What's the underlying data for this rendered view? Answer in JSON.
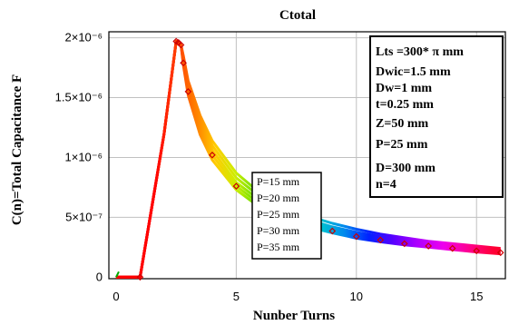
{
  "chart_data": {
    "type": "line",
    "title": "Ctotal",
    "xlabel": "Nunber Turns",
    "ylabel": "C(n)=Total Capacitance F",
    "xlim": [
      -0.3,
      16.2
    ],
    "ylim": [
      -1.3e-08,
      2.05e-06
    ],
    "xticks": [
      0,
      5,
      10,
      15
    ],
    "xtick_labels": [
      "0",
      "5",
      "10",
      "15"
    ],
    "yticks": [
      0,
      5e-07,
      1e-06,
      1.5e-06,
      2e-06
    ],
    "ytick_labels": [
      "0",
      "5×10⁻⁷",
      "1×10⁻⁶",
      "1.5×10⁻⁶",
      "2×10⁻⁶"
    ],
    "grid": true,
    "legend_position": "center-right",
    "params_box": {
      "position": "top-right",
      "lines": [
        "Lts =300* π mm",
        "Dwic=1.5 mm",
        "Dw=1 mm",
        "t=0.25 mm",
        "Z=50 mm",
        "P=25  mm",
        "D=300 mm",
        "n=4"
      ]
    },
    "series": [
      {
        "name": "P=15 mm",
        "x": [
          0,
          1,
          2,
          2.5,
          2.6,
          2.7,
          2.8,
          3,
          3.5,
          4,
          5,
          6,
          7,
          8,
          9,
          10,
          11,
          12,
          13,
          14,
          15,
          16
        ],
        "values": [
          0,
          0,
          1.2e-06,
          1.97e-06,
          1.96e-06,
          1.94e-06,
          1.85e-06,
          1.64e-06,
          1.35e-06,
          1.14e-06,
          8.7e-07,
          7e-07,
          5.9e-07,
          5.1e-07,
          4.5e-07,
          4e-07,
          3.6e-07,
          3.3e-07,
          3e-07,
          2.8e-07,
          2.6e-07,
          2.4e-07
        ]
      },
      {
        "name": "P=20 mm",
        "x": [
          0,
          1,
          2,
          2.5,
          2.6,
          2.7,
          2.8,
          3,
          3.5,
          4,
          5,
          6,
          7,
          8,
          9,
          10,
          11,
          12,
          13,
          14,
          15,
          16
        ],
        "values": [
          0,
          0,
          1.2e-06,
          1.97e-06,
          1.96e-06,
          1.94e-06,
          1.83e-06,
          1.61e-06,
          1.31e-06,
          1.1e-06,
          8.3e-07,
          6.7e-07,
          5.6e-07,
          4.8e-07,
          4.2e-07,
          3.75e-07,
          3.4e-07,
          3.1e-07,
          2.85e-07,
          2.65e-07,
          2.45e-07,
          2.3e-07
        ]
      },
      {
        "name": "P=25 mm",
        "x": [
          0,
          1,
          2,
          2.5,
          2.6,
          2.7,
          2.8,
          3,
          3.5,
          4,
          5,
          6,
          7,
          8,
          9,
          10,
          11,
          12,
          13,
          14,
          15,
          16
        ],
        "values": [
          0,
          0,
          1.2e-06,
          1.97e-06,
          1.96e-06,
          1.94e-06,
          1.81e-06,
          1.58e-06,
          1.27e-06,
          1.06e-06,
          7.9e-07,
          6.4e-07,
          5.3e-07,
          4.6e-07,
          4e-07,
          3.55e-07,
          3.2e-07,
          2.95e-07,
          2.7e-07,
          2.5e-07,
          2.3e-07,
          2.15e-07
        ]
      },
      {
        "name": "P=30 mm",
        "x": [
          0,
          1,
          2,
          2.5,
          2.6,
          2.7,
          2.8,
          3,
          3.5,
          4,
          5,
          6,
          7,
          8,
          9,
          10,
          11,
          12,
          13,
          14,
          15,
          16
        ],
        "values": [
          0,
          0,
          1.2e-06,
          1.97e-06,
          1.96e-06,
          1.94e-06,
          1.79e-06,
          1.55e-06,
          1.23e-06,
          1.02e-06,
          7.6e-07,
          6.1e-07,
          5.1e-07,
          4.4e-07,
          3.85e-07,
          3.4e-07,
          3.1e-07,
          2.8e-07,
          2.6e-07,
          2.4e-07,
          2.2e-07,
          2.05e-07
        ]
      },
      {
        "name": "P=35 mm",
        "x": [
          0,
          1,
          2,
          2.5,
          2.6,
          2.7,
          2.8,
          3,
          3.5,
          4,
          5,
          6,
          7,
          8,
          9,
          10,
          11,
          12,
          13,
          14,
          15,
          16
        ],
        "values": [
          0,
          0,
          1.2e-06,
          1.97e-06,
          1.96e-06,
          1.94e-06,
          1.77e-06,
          1.52e-06,
          1.19e-06,
          9.8e-07,
          7.3e-07,
          5.8e-07,
          4.9e-07,
          4.2e-07,
          3.7e-07,
          3.25e-07,
          2.95e-07,
          2.7e-07,
          2.5e-07,
          2.3e-07,
          2.1e-07,
          1.95e-07
        ]
      }
    ],
    "markers": {
      "x": [
        1,
        2.5,
        2.6,
        2.7,
        2.8,
        3,
        4,
        5,
        9,
        10,
        11,
        12,
        13,
        14,
        15,
        16
      ],
      "values": [
        0,
        1.97e-06,
        1.96e-06,
        1.94e-06,
        1.79e-06,
        1.55e-06,
        1.02e-06,
        7.6e-07,
        3.85e-07,
        3.4e-07,
        3.1e-07,
        2.8e-07,
        2.6e-07,
        2.4e-07,
        2.2e-07,
        2.05e-07
      ]
    }
  },
  "colors": {
    "gradient": [
      "#ff0000",
      "#ff4400",
      "#ff8800",
      "#ffcc00",
      "#ccee00",
      "#66dd00",
      "#00cc66",
      "#00cccc",
      "#0088ee",
      "#0022ff",
      "#5500ff",
      "#aa00ff",
      "#ee00ee",
      "#ff0088",
      "#ff0033"
    ],
    "marker": "#cc0000",
    "grid": "#c0c0c0",
    "start_tick": "#00aa00"
  }
}
